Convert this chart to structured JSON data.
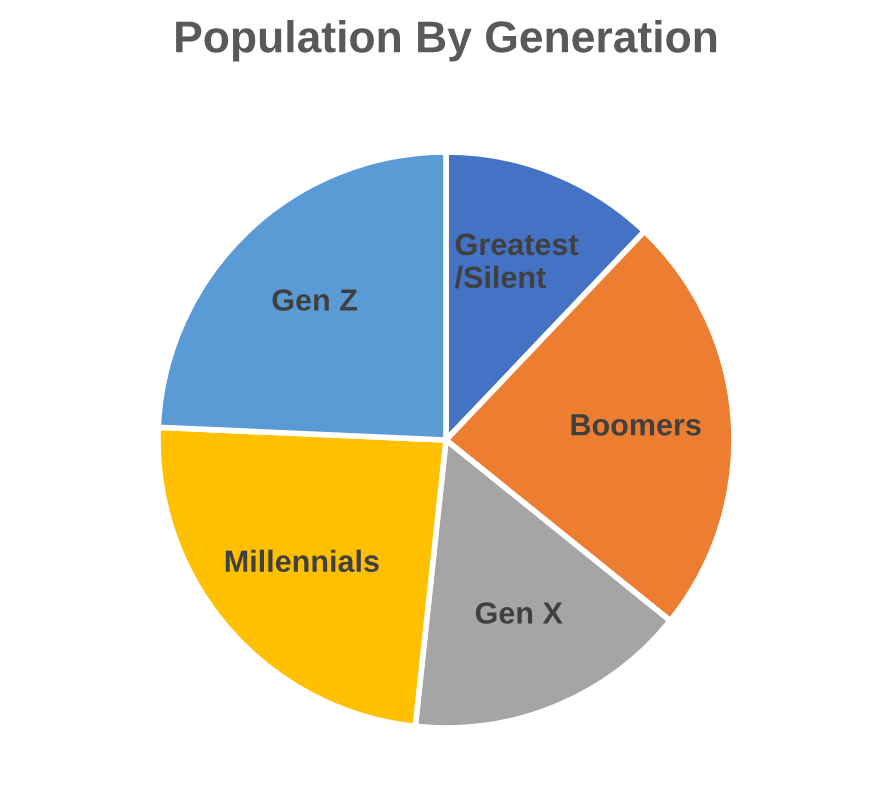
{
  "chart_data": {
    "type": "pie",
    "title": "Population By Generation",
    "categories": [
      "Greatest\n/Silent",
      "Boomers",
      "Gen X",
      "Millennials",
      "Gen Z"
    ],
    "values": [
      12.1,
      23.7,
      15.9,
      24.0,
      24.3
    ],
    "colors": [
      "#4472c4",
      "#ed7d31",
      "#a5a5a5",
      "#ffc000",
      "#5b9bd5"
    ],
    "legend": false
  }
}
